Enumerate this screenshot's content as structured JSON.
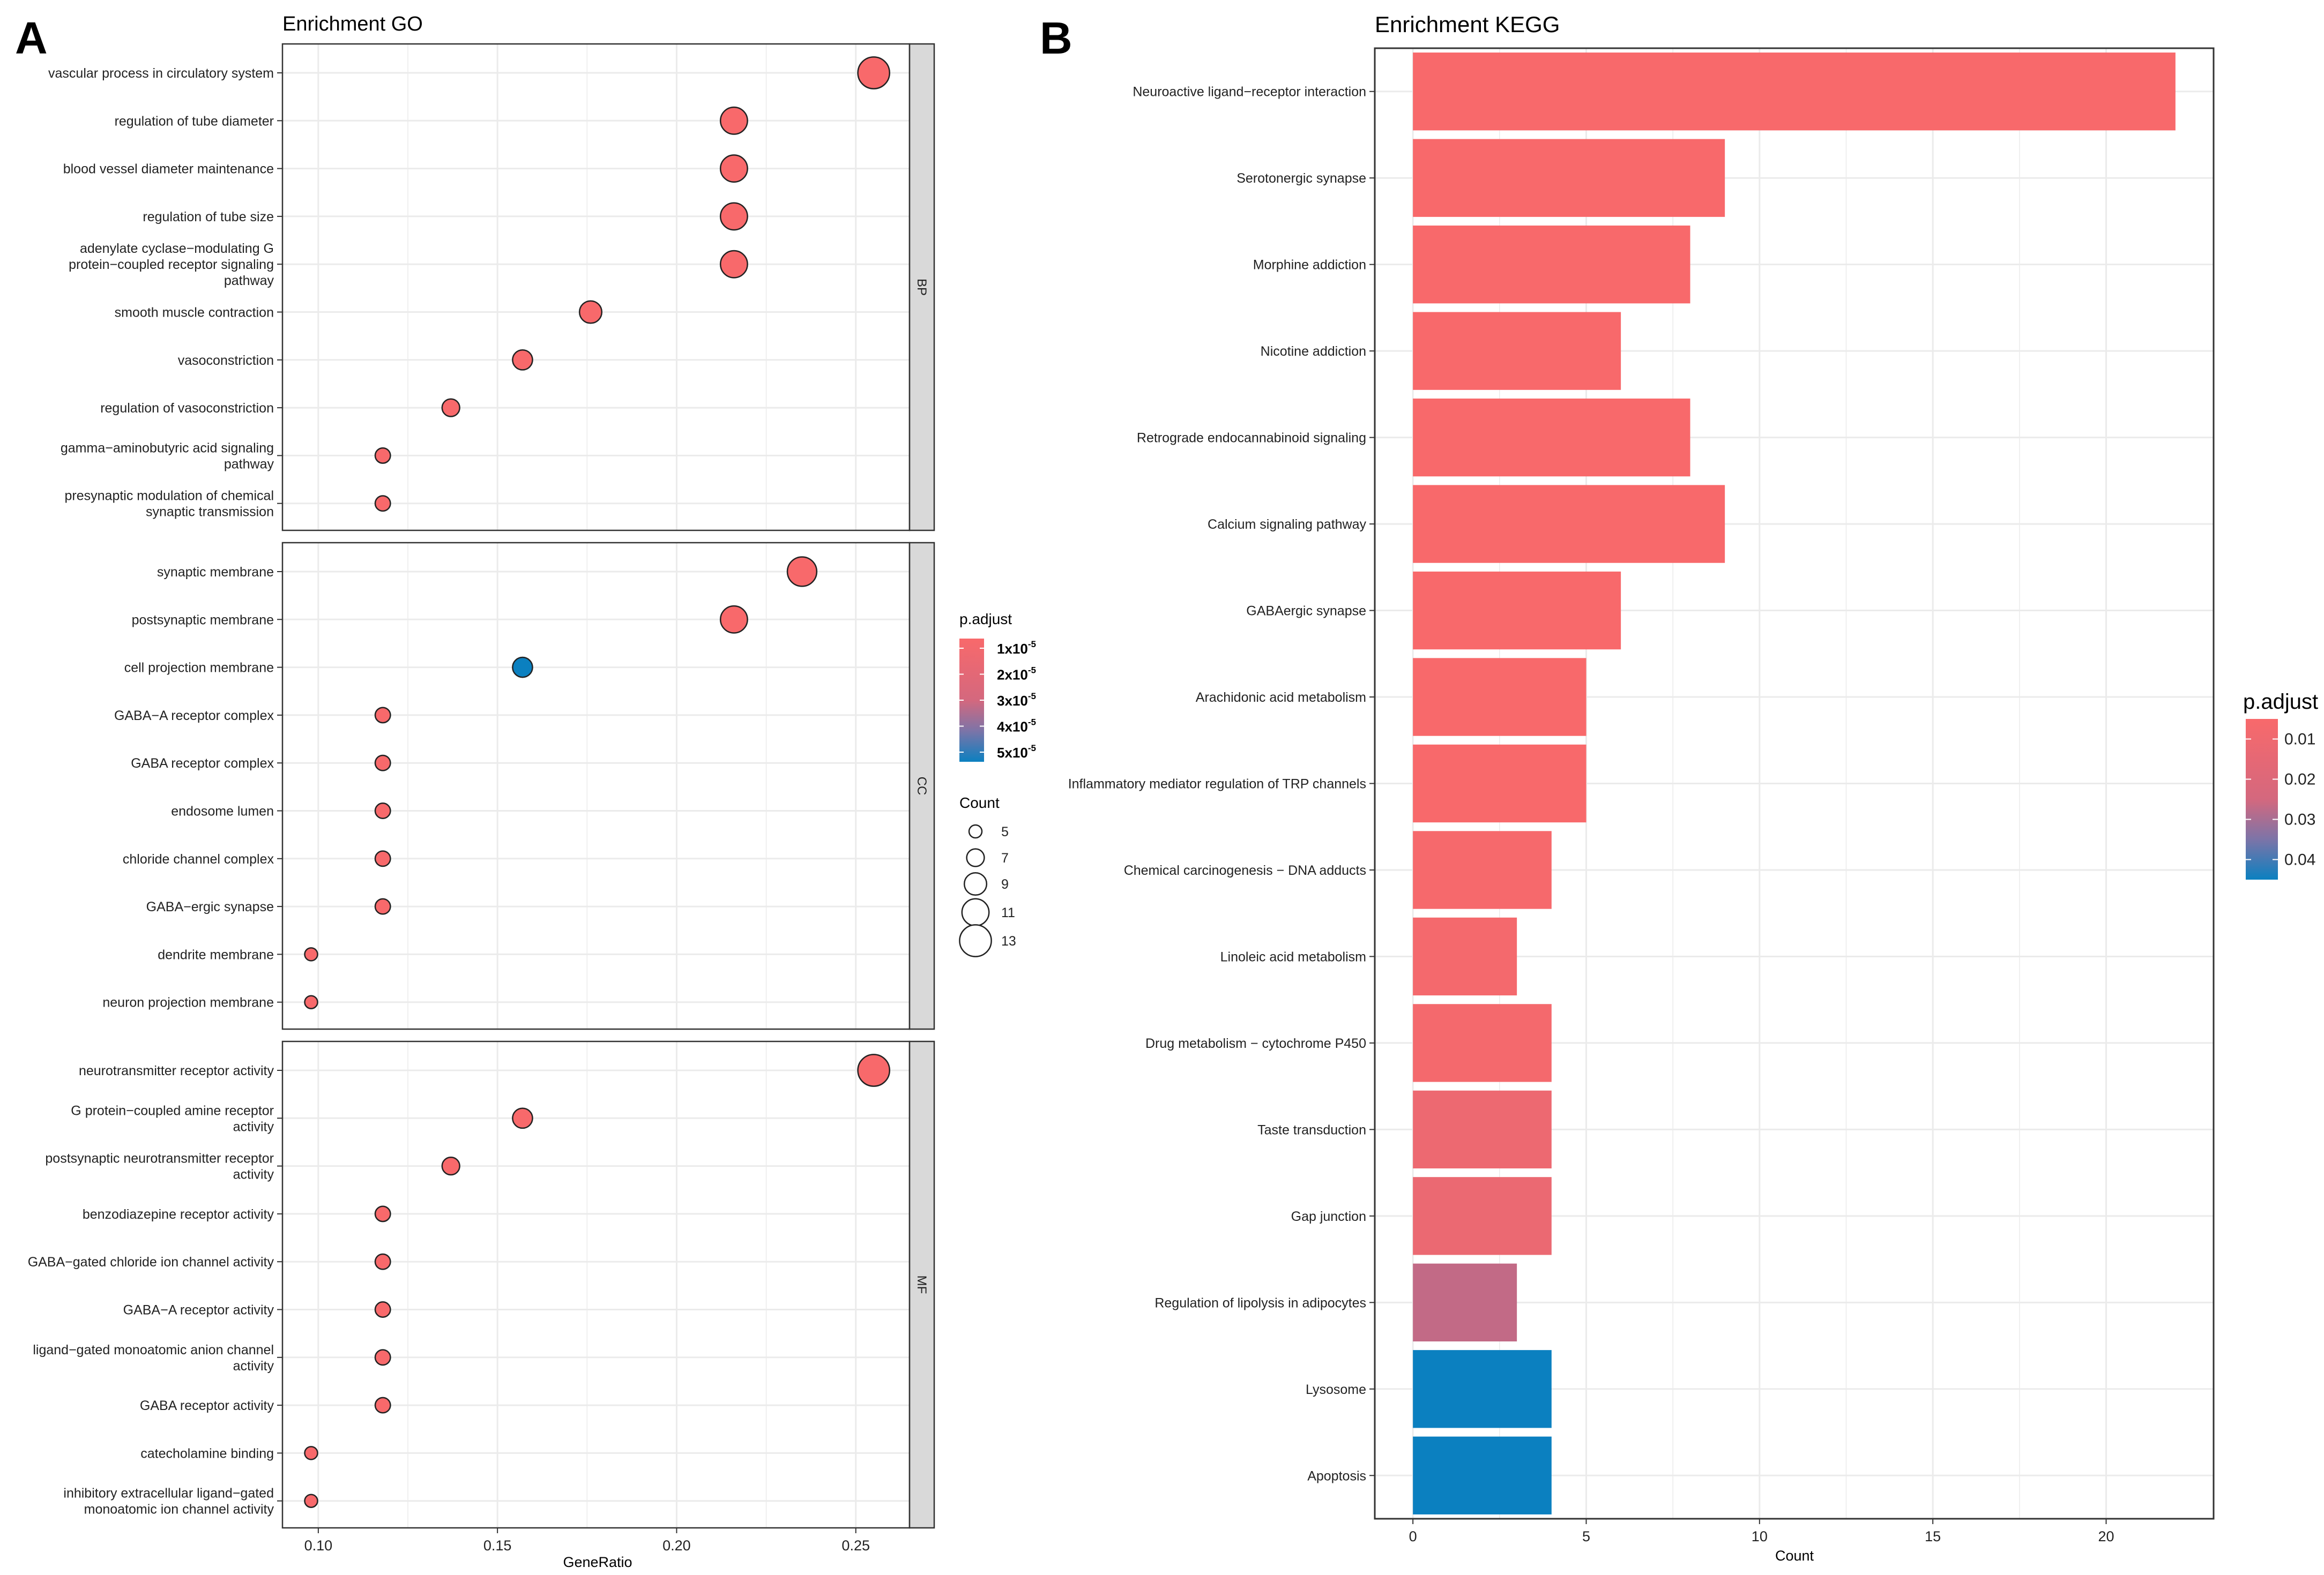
{
  "panel_labels": {
    "a": "A",
    "b": "B"
  },
  "colors": {
    "low": "#F8696B",
    "high": "#0B80C0",
    "grid": "#EBEBEB",
    "panel_border": "#333333",
    "strip_bg": "#D9D9D9",
    "point_stroke": "#222222"
  },
  "chart_data": [
    {
      "type": "scatter",
      "title": "Enrichment GO",
      "xlabel": "GeneRatio",
      "ylabel": "",
      "xlim": [
        0.09,
        0.265
      ],
      "xticks": [
        0.1,
        0.15,
        0.2,
        0.25
      ],
      "xtick_labels": [
        "0.10",
        "0.15",
        "0.20",
        "0.25"
      ],
      "color_legend": {
        "title": "p.adjust",
        "labels": [
          {
            "base": "1x10",
            "exp": "-5"
          },
          {
            "base": "2x10",
            "exp": "-5"
          },
          {
            "base": "3x10",
            "exp": "-5"
          },
          {
            "base": "4x10",
            "exp": "-5"
          },
          {
            "base": "5x10",
            "exp": "-5"
          }
        ]
      },
      "size_legend": {
        "title": "Count",
        "values": [
          5,
          7,
          9,
          11,
          13
        ],
        "labels": [
          "5",
          "7",
          "9",
          "11",
          "13"
        ]
      },
      "facets": [
        {
          "strip": "BP",
          "terms": [
            {
              "label": [
                "vascular process in circulatory system"
              ],
              "ratio": 0.255,
              "count": 13,
              "color": 0
            },
            {
              "label": [
                "regulation of tube diameter"
              ],
              "ratio": 0.216,
              "count": 11,
              "color": 0
            },
            {
              "label": [
                "blood vessel diameter maintenance"
              ],
              "ratio": 0.216,
              "count": 11,
              "color": 0
            },
            {
              "label": [
                "regulation of tube size"
              ],
              "ratio": 0.216,
              "count": 11,
              "color": 0
            },
            {
              "label": [
                "adenylate cyclase−modulating G",
                "protein−coupled receptor signaling",
                "pathway"
              ],
              "ratio": 0.216,
              "count": 11,
              "color": 0
            },
            {
              "label": [
                "smooth muscle contraction"
              ],
              "ratio": 0.176,
              "count": 9,
              "color": 0
            },
            {
              "label": [
                "vasoconstriction"
              ],
              "ratio": 0.157,
              "count": 8,
              "color": 0
            },
            {
              "label": [
                "regulation of vasoconstriction"
              ],
              "ratio": 0.137,
              "count": 7,
              "color": 0
            },
            {
              "label": [
                "gamma−aminobutyric acid signaling",
                "pathway"
              ],
              "ratio": 0.118,
              "count": 6,
              "color": 0
            },
            {
              "label": [
                "presynaptic modulation of chemical",
                "synaptic transmission"
              ],
              "ratio": 0.118,
              "count": 6,
              "color": 0
            }
          ]
        },
        {
          "strip": "CC",
          "terms": [
            {
              "label": [
                "synaptic membrane"
              ],
              "ratio": 0.235,
              "count": 12,
              "color": 0
            },
            {
              "label": [
                "postsynaptic membrane"
              ],
              "ratio": 0.216,
              "count": 11,
              "color": 0
            },
            {
              "label": [
                "cell projection membrane"
              ],
              "ratio": 0.157,
              "count": 8,
              "color": 1
            },
            {
              "label": [
                "GABA−A receptor complex"
              ],
              "ratio": 0.118,
              "count": 6,
              "color": 0
            },
            {
              "label": [
                "GABA receptor complex"
              ],
              "ratio": 0.118,
              "count": 6,
              "color": 0
            },
            {
              "label": [
                "endosome lumen"
              ],
              "ratio": 0.118,
              "count": 6,
              "color": 0
            },
            {
              "label": [
                "chloride channel complex"
              ],
              "ratio": 0.118,
              "count": 6,
              "color": 0
            },
            {
              "label": [
                "GABA−ergic synapse"
              ],
              "ratio": 0.118,
              "count": 6,
              "color": 0
            },
            {
              "label": [
                "dendrite membrane"
              ],
              "ratio": 0.098,
              "count": 5,
              "color": 0
            },
            {
              "label": [
                "neuron projection membrane"
              ],
              "ratio": 0.098,
              "count": 5,
              "color": 0
            }
          ]
        },
        {
          "strip": "MF",
          "terms": [
            {
              "label": [
                "neurotransmitter receptor activity"
              ],
              "ratio": 0.255,
              "count": 13,
              "color": 0
            },
            {
              "label": [
                "G protein−coupled amine receptor",
                "activity"
              ],
              "ratio": 0.157,
              "count": 8,
              "color": 0
            },
            {
              "label": [
                "postsynaptic neurotransmitter receptor",
                "activity"
              ],
              "ratio": 0.137,
              "count": 7,
              "color": 0
            },
            {
              "label": [
                "benzodiazepine receptor activity"
              ],
              "ratio": 0.118,
              "count": 6,
              "color": 0
            },
            {
              "label": [
                "GABA−gated chloride ion channel activity"
              ],
              "ratio": 0.118,
              "count": 6,
              "color": 0
            },
            {
              "label": [
                "GABA−A receptor activity"
              ],
              "ratio": 0.118,
              "count": 6,
              "color": 0
            },
            {
              "label": [
                "ligand−gated monoatomic anion channel",
                "activity"
              ],
              "ratio": 0.118,
              "count": 6,
              "color": 0
            },
            {
              "label": [
                "GABA receptor activity"
              ],
              "ratio": 0.118,
              "count": 6,
              "color": 0
            },
            {
              "label": [
                "catecholamine binding"
              ],
              "ratio": 0.098,
              "count": 5,
              "color": 0
            },
            {
              "label": [
                "inhibitory extracellular ligand−gated",
                "monoatomic ion channel activity"
              ],
              "ratio": 0.098,
              "count": 5,
              "color": 0
            }
          ]
        }
      ]
    },
    {
      "type": "bar",
      "orientation": "horizontal",
      "title": "Enrichment KEGG",
      "xlabel": "Count",
      "ylabel": "",
      "xlim": [
        -1.1,
        23.1
      ],
      "xticks": [
        0,
        5,
        10,
        15,
        20
      ],
      "xtick_labels": [
        "0",
        "5",
        "10",
        "15",
        "20"
      ],
      "color_legend": {
        "title": "p.adjust",
        "range": [
          0.005,
          0.045
        ],
        "ticks": [
          0.01,
          0.02,
          0.03,
          0.04
        ],
        "labels": [
          "0.01",
          "0.02",
          "0.03",
          "0.04"
        ]
      },
      "categories": [
        "Neuroactive ligand−receptor interaction",
        "Serotonergic synapse",
        "Morphine addiction",
        "Nicotine addiction",
        "Retrograde endocannabinoid signaling",
        "Calcium signaling pathway",
        "GABAergic synapse",
        "Arachidonic acid metabolism",
        "Inflammatory mediator regulation of TRP channels",
        "Chemical carcinogenesis − DNA adducts",
        "Linoleic acid metabolism",
        "Drug metabolism − cytochrome P450",
        "Taste transduction",
        "Gap junction",
        "Regulation of lipolysis in adipocytes",
        "Lysosome",
        "Apoptosis"
      ],
      "values": [
        22,
        9,
        8,
        6,
        8,
        9,
        6,
        5,
        5,
        4,
        3,
        4,
        4,
        4,
        3,
        4,
        4
      ],
      "p_adjust": [
        0.0005,
        0.0008,
        0.001,
        0.0012,
        0.0015,
        0.0018,
        0.002,
        0.0022,
        0.0025,
        0.006,
        0.007,
        0.0075,
        0.011,
        0.012,
        0.027,
        0.047,
        0.047
      ]
    }
  ]
}
